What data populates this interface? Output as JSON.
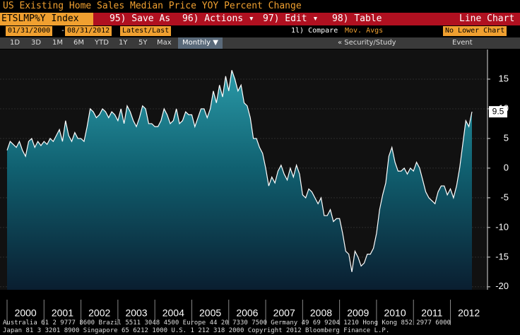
{
  "ui": {
    "title": "US Existing Home Sales Median Price YOY Percent Change",
    "ticker": "ETSLMP%Y Index",
    "save_as": "95) Save As",
    "actions": "96) Actions ▾",
    "edit": "97) Edit ▾",
    "table": "98) Table",
    "chart_kind": "Line Chart",
    "start_date": "01/31/2000",
    "date_sep": "-",
    "end_date": "08/31/2012",
    "price_mode": "Latest/Last",
    "compare": "1l) Compare",
    "mov_avgs": "Mov. Avgs",
    "lower_chart": "No Lower Chart",
    "ranges": [
      "1D",
      "3D",
      "1M",
      "6M",
      "YTD",
      "1Y",
      "5Y",
      "Max"
    ],
    "period": "Monthly ▼",
    "security_study": "« Security/Study",
    "event": "Event",
    "footer": [
      "Australia 61 2 9777 8600 Brazil 5511 3048 4500 Europe 44 20 7330 7500 Germany 49 69 9204 1210 Hong Kong 852 2977 6000",
      "Japan 81 3 3201 8900       Singapore 65 6212 1000       U.S. 1 212 318 2000          Copyright 2012 Bloomberg Finance L.P."
    ]
  },
  "chart_data": {
    "type": "area",
    "categories": [
      null,
      null,
      null,
      null,
      null,
      null,
      "2000",
      null,
      null,
      null,
      null,
      null,
      null,
      null,
      null,
      null,
      null,
      null,
      "2001",
      null,
      null,
      null,
      null,
      null,
      null,
      null,
      null,
      null,
      null,
      null,
      "2002",
      null,
      null,
      null,
      null,
      null,
      null,
      null,
      null,
      null,
      null,
      null,
      "2003",
      null,
      null,
      null,
      null,
      null,
      null,
      null,
      null,
      null,
      null,
      null,
      "2004",
      null,
      null,
      null,
      null,
      null,
      null,
      null,
      null,
      null,
      null,
      null,
      "2005",
      null,
      null,
      null,
      null,
      null,
      null,
      null,
      null,
      null,
      null,
      null,
      "2006",
      null,
      null,
      null,
      null,
      null,
      null,
      null,
      null,
      null,
      null,
      null,
      "2007",
      null,
      null,
      null,
      null,
      null,
      null,
      null,
      null,
      null,
      null,
      null,
      "2008",
      null,
      null,
      null,
      null,
      null,
      null,
      null,
      null,
      null,
      null,
      null,
      "2009",
      null,
      null,
      null,
      null,
      null,
      null,
      null,
      null,
      null,
      null,
      null,
      "2010",
      null,
      null,
      null,
      null,
      null,
      null,
      null,
      null,
      null,
      null,
      null,
      "2011",
      null,
      null,
      null,
      null,
      null,
      null,
      null,
      null,
      null,
      null,
      null,
      "2012",
      null
    ],
    "series": [
      {
        "name": "ETSLMP%Y Index",
        "color": "#ffffff",
        "values": [
          3,
          4.5,
          4,
          3.5,
          4.5,
          3,
          2,
          4.5,
          5,
          3.5,
          4.5,
          3.8,
          4.5,
          4,
          5,
          4.5,
          5.5,
          6.5,
          4.5,
          8,
          5.5,
          4.5,
          6,
          5,
          5,
          4.5,
          7,
          10,
          9.5,
          8.5,
          9,
          10,
          9.5,
          8.5,
          9.5,
          9,
          8,
          10,
          7.5,
          10.5,
          9.5,
          8,
          7,
          8.5,
          10.5,
          10,
          7.5,
          7.5,
          7,
          7,
          8,
          10,
          9,
          7.5,
          8,
          10,
          7.5,
          8,
          9.5,
          9,
          9,
          7,
          8.5,
          10,
          10,
          8.5,
          10,
          13,
          11,
          14,
          12,
          15.5,
          13,
          16.5,
          15,
          13,
          14,
          11,
          10.5,
          8.5,
          5,
          5,
          3.5,
          2.5,
          0,
          -3,
          -1.5,
          -2.5,
          -0.5,
          0.5,
          -1,
          -2,
          0,
          -1.5,
          0.5,
          -1,
          -4.5,
          -5,
          -3.5,
          -4,
          -5,
          -6,
          -5,
          -8,
          -8,
          -7,
          -9,
          -8.5,
          -8.5,
          -11,
          -14,
          -14.5,
          -17.5,
          -14,
          -15,
          -16.5,
          -16,
          -14.5,
          -14.5,
          -13.5,
          -11,
          -7,
          -4.5,
          -2.5,
          2,
          3.5,
          1,
          -0.5,
          -0.5,
          0,
          -1,
          0,
          -0.5,
          1,
          0,
          -2,
          -4,
          -5,
          -5.5,
          -6,
          -4,
          -3,
          -3,
          -4.5,
          -3.5,
          -5,
          -3,
          0,
          4,
          8,
          7,
          9.5
        ]
      }
    ],
    "ylim": [
      -20.5,
      20
    ],
    "yticks": [
      -20,
      -15,
      -10,
      -5,
      0,
      5,
      10,
      15
    ],
    "grid": true
  }
}
